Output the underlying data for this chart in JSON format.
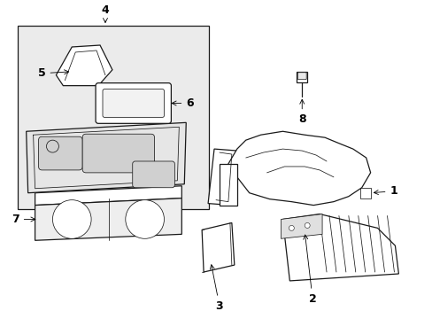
{
  "bg_color": "#ffffff",
  "box_bg": "#ececec",
  "line_color": "#1a1a1a",
  "figsize": [
    4.89,
    3.6
  ],
  "dpi": 100
}
